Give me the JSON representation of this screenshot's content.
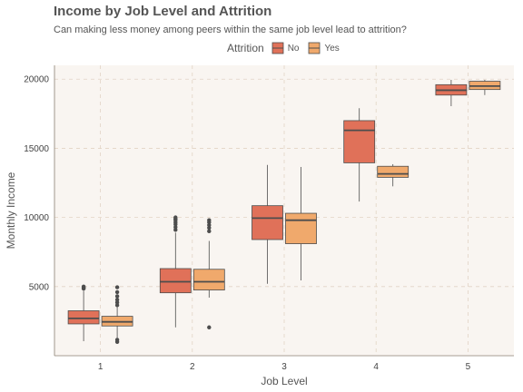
{
  "chart_data": {
    "type": "boxplot",
    "title": "Income by Job Level and Attrition",
    "subtitle": "Can making less money among peers within the same job level lead to attrition?",
    "xlabel": "Job Level",
    "ylabel": "Monthly Income",
    "categories": [
      "1",
      "2",
      "3",
      "4",
      "5"
    ],
    "ylim": [
      0,
      21000
    ],
    "yticks": [
      5000,
      10000,
      15000,
      20000
    ],
    "grid": true,
    "legend": {
      "title": "Attrition",
      "position": "top"
    },
    "series": [
      {
        "name": "No",
        "color": "#E07159",
        "boxes": [
          {
            "min": 1050,
            "q1": 2300,
            "median": 2700,
            "q3": 3250,
            "max": 4700,
            "outliers": [
              4850,
              4900,
              4950,
              5000
            ]
          },
          {
            "min": 2050,
            "q1": 4550,
            "median": 5350,
            "q3": 6300,
            "max": 8900,
            "outliers": [
              9100,
              9300,
              9500,
              9650,
              9800,
              9900,
              10000
            ]
          },
          {
            "min": 5200,
            "q1": 8400,
            "median": 9950,
            "q3": 10850,
            "max": 13800,
            "outliers": []
          },
          {
            "min": 11150,
            "q1": 13950,
            "median": 16300,
            "q3": 17000,
            "max": 17900,
            "outliers": []
          },
          {
            "min": 18050,
            "q1": 18850,
            "median": 19200,
            "q3": 19600,
            "max": 19950,
            "outliers": []
          }
        ]
      },
      {
        "name": "Yes",
        "color": "#F0A96C",
        "boxes": [
          {
            "min": 1300,
            "q1": 2150,
            "median": 2450,
            "q3": 2850,
            "max": 3500,
            "outliers": [
              1000,
              1150,
              3650,
              3850,
              4050,
              4300,
              4600,
              4950
            ]
          },
          {
            "min": 4200,
            "q1": 4750,
            "median": 5350,
            "q3": 6250,
            "max": 8300,
            "outliers": [
              2050,
              9000,
              9250,
              9450,
              9650,
              9800
            ]
          },
          {
            "min": 5450,
            "q1": 8100,
            "median": 9800,
            "q3": 10300,
            "max": 13650,
            "outliers": []
          },
          {
            "min": 12250,
            "q1": 12900,
            "median": 13150,
            "q3": 13700,
            "max": 13850,
            "outliers": []
          },
          {
            "min": 18850,
            "q1": 19250,
            "median": 19500,
            "q3": 19850,
            "max": 19950,
            "outliers": []
          }
        ]
      }
    ]
  },
  "colors": {
    "panel_background": "#F9F5F1",
    "grid": "#E2D4C5",
    "box_outline": "#4D4D4D"
  }
}
